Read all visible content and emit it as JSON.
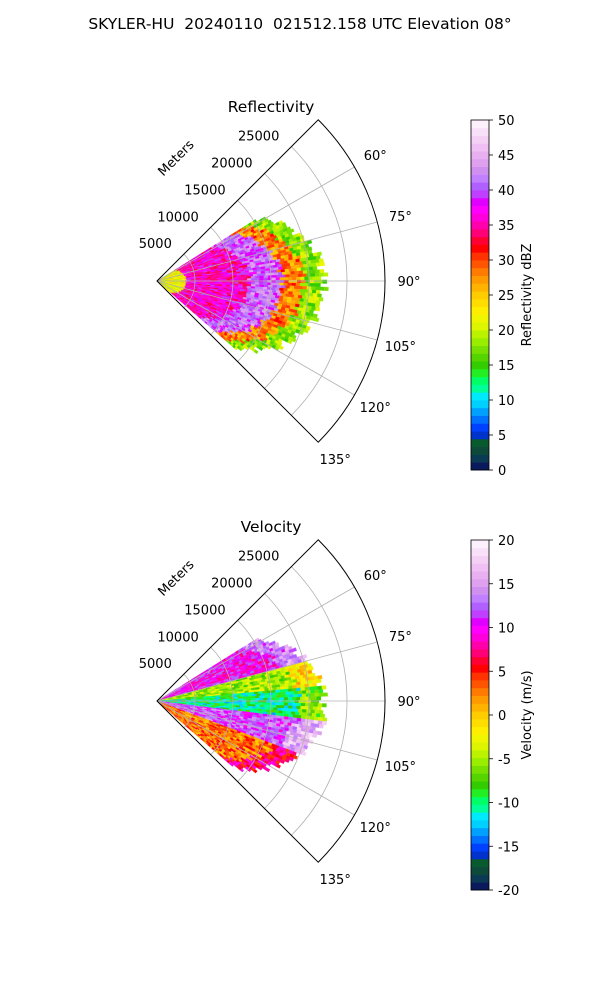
{
  "figure": {
    "title": "SKYLER-HU  20240110  021512.158 UTC Elevation 08°"
  },
  "chart_data": [
    {
      "type": "heatmap",
      "projection": "polar-sector",
      "title": "Reflectivity",
      "theta_range_deg": [
        45,
        135
      ],
      "theta_ticks": [
        "60°",
        "75°",
        "90°",
        "105°",
        "120°",
        "135°"
      ],
      "r_ticks": [
        "5000",
        "10000",
        "15000",
        "20000",
        "25000"
      ],
      "r_label": "Meters",
      "r_max": 30000,
      "grid": true,
      "colorbar": {
        "label": "Reflectivity dBZ",
        "min": 0,
        "max": 50,
        "ticks": [
          "0",
          "5",
          "10",
          "15",
          "20",
          "25",
          "30",
          "35",
          "40",
          "45",
          "50"
        ],
        "colors": [
          "#0a1a5c",
          "#0b3a55",
          "#0d4a3a",
          "#0a5a30",
          "#0033cc",
          "#0040ff",
          "#0070ff",
          "#00a0ff",
          "#00d0ff",
          "#00eaff",
          "#00ff99",
          "#00ff66",
          "#22ee22",
          "#33cc00",
          "#55d400",
          "#77e000",
          "#99ee00",
          "#bbf200",
          "#ddf500",
          "#f0f500",
          "#ffee00",
          "#ffdd00",
          "#ffcc00",
          "#ffb300",
          "#ff9900",
          "#ff7a00",
          "#ff5500",
          "#ff3300",
          "#ff0000",
          "#ff0033",
          "#ff0077",
          "#ff00aa",
          "#ff00dd",
          "#ff00ff",
          "#e000ff",
          "#c040ff",
          "#b060ff",
          "#c080ff",
          "#d090f0",
          "#e0a0f0",
          "#e8b0f0",
          "#f0c0f5",
          "#f5d0f5",
          "#f8e0f8",
          "#fcf0fc"
        ]
      },
      "echo": {
        "description_levels": [
          {
            "r_frac": [
              0.0,
              0.18
            ],
            "value": 22
          },
          {
            "r_frac": [
              0.18,
              0.55
            ],
            "value": 36
          },
          {
            "r_frac": [
              0.55,
              0.75
            ],
            "value": 41
          },
          {
            "r_frac": [
              0.75,
              0.88
            ],
            "value": 28
          },
          {
            "r_frac": [
              0.88,
              1.0
            ],
            "value": 18
          }
        ],
        "theta_extent_deg": [
          58,
          131
        ]
      }
    },
    {
      "type": "heatmap",
      "projection": "polar-sector",
      "title": "Velocity",
      "theta_range_deg": [
        45,
        135
      ],
      "theta_ticks": [
        "60°",
        "75°",
        "90°",
        "105°",
        "120°",
        "135°"
      ],
      "r_ticks": [
        "5000",
        "10000",
        "15000",
        "20000",
        "25000"
      ],
      "r_label": "Meters",
      "r_max": 30000,
      "grid": true,
      "colorbar": {
        "label": "Velocity (m/s)",
        "min": -20,
        "max": 20,
        "ticks": [
          "-20",
          "-15",
          "-10",
          "-5",
          "0",
          "5",
          "10",
          "15",
          "20"
        ],
        "colors": [
          "#0a1a5c",
          "#0b3a55",
          "#0d4a3a",
          "#0a5a30",
          "#0033cc",
          "#0040ff",
          "#0070ff",
          "#00a0ff",
          "#00d0ff",
          "#00eaff",
          "#00ff99",
          "#00ff66",
          "#22ee22",
          "#33cc00",
          "#55d400",
          "#77e000",
          "#99ee00",
          "#bbf200",
          "#ddf500",
          "#f0f500",
          "#ffee00",
          "#ffdd00",
          "#ffcc00",
          "#ffb300",
          "#ff9900",
          "#ff7a00",
          "#ff5500",
          "#ff3300",
          "#ff0000",
          "#ff0033",
          "#ff0077",
          "#ff00aa",
          "#ff00dd",
          "#ff00ff",
          "#e000ff",
          "#c040ff",
          "#b060ff",
          "#c080ff",
          "#d090f0",
          "#e0a0f0",
          "#e8b0f0",
          "#f0c0f5",
          "#f5d0f5",
          "#f8e0f8",
          "#fcf0fc"
        ]
      },
      "echo": {
        "theta_extent_deg": [
          58,
          131
        ],
        "description_levels": [
          {
            "theta_deg": [
              58,
              75
            ],
            "value": 10
          },
          {
            "theta_deg": [
              75,
              85
            ],
            "value": -5
          },
          {
            "theta_deg": [
              85,
              97
            ],
            "value": -10
          },
          {
            "theta_deg": [
              97,
              110
            ],
            "value": 12
          },
          {
            "theta_deg": [
              110,
              131
            ],
            "value": 3
          }
        ]
      }
    }
  ]
}
